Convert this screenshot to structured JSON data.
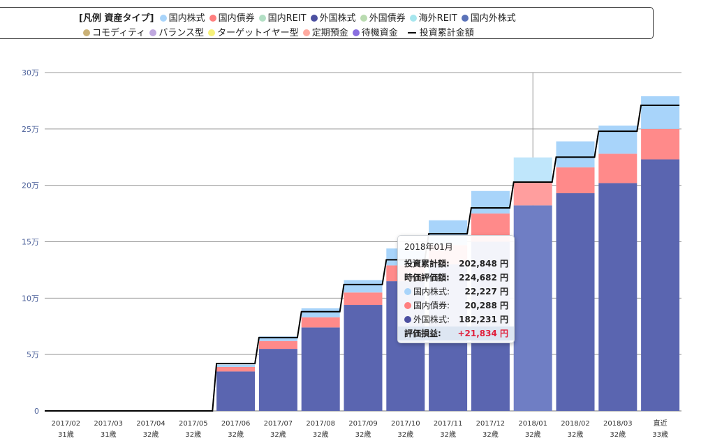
{
  "legend": {
    "title": "[凡例 資産タイプ]",
    "items": [
      {
        "label": "国内株式",
        "color": "#a8d4fa"
      },
      {
        "label": "国内債券",
        "color": "#ff7f7f"
      },
      {
        "label": "国内REIT",
        "color": "#b2dfc4"
      },
      {
        "label": "外国株式",
        "color": "#4b4fa0"
      },
      {
        "label": "外国債券",
        "color": "#b9dbb0"
      },
      {
        "label": "海外REIT",
        "color": "#a6e6ee"
      },
      {
        "label": "国内外株式",
        "color": "#5a72b8"
      },
      {
        "label": "コモディティ",
        "color": "#cbb277"
      },
      {
        "label": "バランス型",
        "color": "#c0a8e0"
      },
      {
        "label": "ターゲットイヤー型",
        "color": "#f7f27a"
      },
      {
        "label": "定期預金",
        "color": "#ffaaa0"
      },
      {
        "label": "待機資金",
        "color": "#8a6fe0"
      }
    ],
    "line_label": "投資累計金額"
  },
  "chart_data": {
    "type": "bar",
    "stacked": true,
    "categories": [
      "2017/02",
      "2017/03",
      "2017/04",
      "2017/05",
      "2017/06",
      "2017/07",
      "2017/08",
      "2017/09",
      "2017/10",
      "2017/11",
      "2017/12",
      "2018/01",
      "2018/02",
      "2018/03",
      "直近"
    ],
    "ages": [
      "31歳",
      "31歳",
      "32歳",
      "32歳",
      "32歳",
      "32歳",
      "32歳",
      "32歳",
      "32歳",
      "32歳",
      "32歳",
      "32歳",
      "32歳",
      "32歳",
      "33歳"
    ],
    "series": [
      {
        "name": "外国株式",
        "color": "#5a65b0",
        "values": [
          0,
          0,
          0,
          0,
          35000,
          55000,
          74000,
          94000,
          115000,
          130000,
          150000,
          182231,
          193000,
          202000,
          223000
        ]
      },
      {
        "name": "国内債券",
        "color": "#ff8a8a",
        "values": [
          0,
          0,
          0,
          0,
          4000,
          7000,
          9000,
          11000,
          14000,
          17000,
          25000,
          20288,
          23000,
          26000,
          27000
        ]
      },
      {
        "name": "国内株式",
        "color": "#a8d4fa",
        "values": [
          0,
          0,
          0,
          0,
          2000,
          4000,
          8000,
          11000,
          15000,
          22000,
          20000,
          22227,
          23000,
          25000,
          29000
        ]
      }
    ],
    "invest_line": {
      "name": "投資累計金額",
      "values": [
        0,
        0,
        0,
        0,
        42000,
        65000,
        88000,
        112000,
        134000,
        157000,
        180000,
        202848,
        225000,
        248000,
        271000
      ]
    },
    "highlight_index": 11,
    "y_ticks": [
      0,
      50000,
      100000,
      150000,
      200000,
      250000,
      300000
    ],
    "y_tick_labels": [
      "0",
      "5万",
      "10万",
      "15万",
      "20万",
      "25万",
      "30万"
    ],
    "ylim": [
      0,
      300000
    ]
  },
  "tooltip": {
    "title": "2018年01月",
    "invest_label": "投資累計額:",
    "invest_value": "202,848 円",
    "valuation_label": "時価評価額:",
    "valuation_value": "224,682 円",
    "items": [
      {
        "label": "国内株式:",
        "value": "22,227 円",
        "color": "#a8d4fa"
      },
      {
        "label": "国内債券:",
        "value": "20,288 円",
        "color": "#ff7f7f"
      },
      {
        "label": "外国株式:",
        "value": "182,231 円",
        "color": "#4b4fa0"
      }
    ],
    "gain_label": "評価損益:",
    "gain_value": "+21,834 円"
  }
}
